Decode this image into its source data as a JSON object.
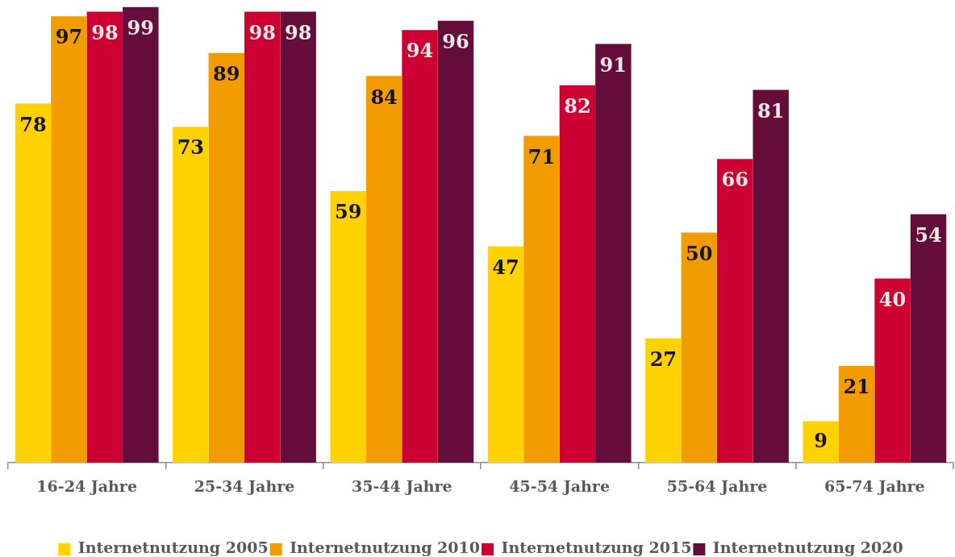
{
  "chart_data": {
    "type": "bar",
    "categories": [
      "16-24 Jahre",
      "25-34 Jahre",
      "35-44 Jahre",
      "45-54 Jahre",
      "55-64 Jahre",
      "65-74 Jahre"
    ],
    "series": [
      {
        "name": "Internetnutzung 2005",
        "color": "#ffd200",
        "values": [
          78,
          73,
          59,
          47,
          27,
          9
        ]
      },
      {
        "name": "Internetnutzung 2010",
        "color": "#f39c00",
        "values": [
          97,
          89,
          84,
          71,
          50,
          21
        ]
      },
      {
        "name": "Internetnutzung 2015",
        "color": "#cc0033",
        "values": [
          98,
          98,
          94,
          82,
          66,
          40
        ]
      },
      {
        "name": "Internetnutzung 2020",
        "color": "#640d3a",
        "values": [
          99,
          98,
          96,
          91,
          81,
          54
        ]
      }
    ],
    "data_labels": true,
    "legend": "bottom",
    "grid": false,
    "tick_labels": "x"
  }
}
